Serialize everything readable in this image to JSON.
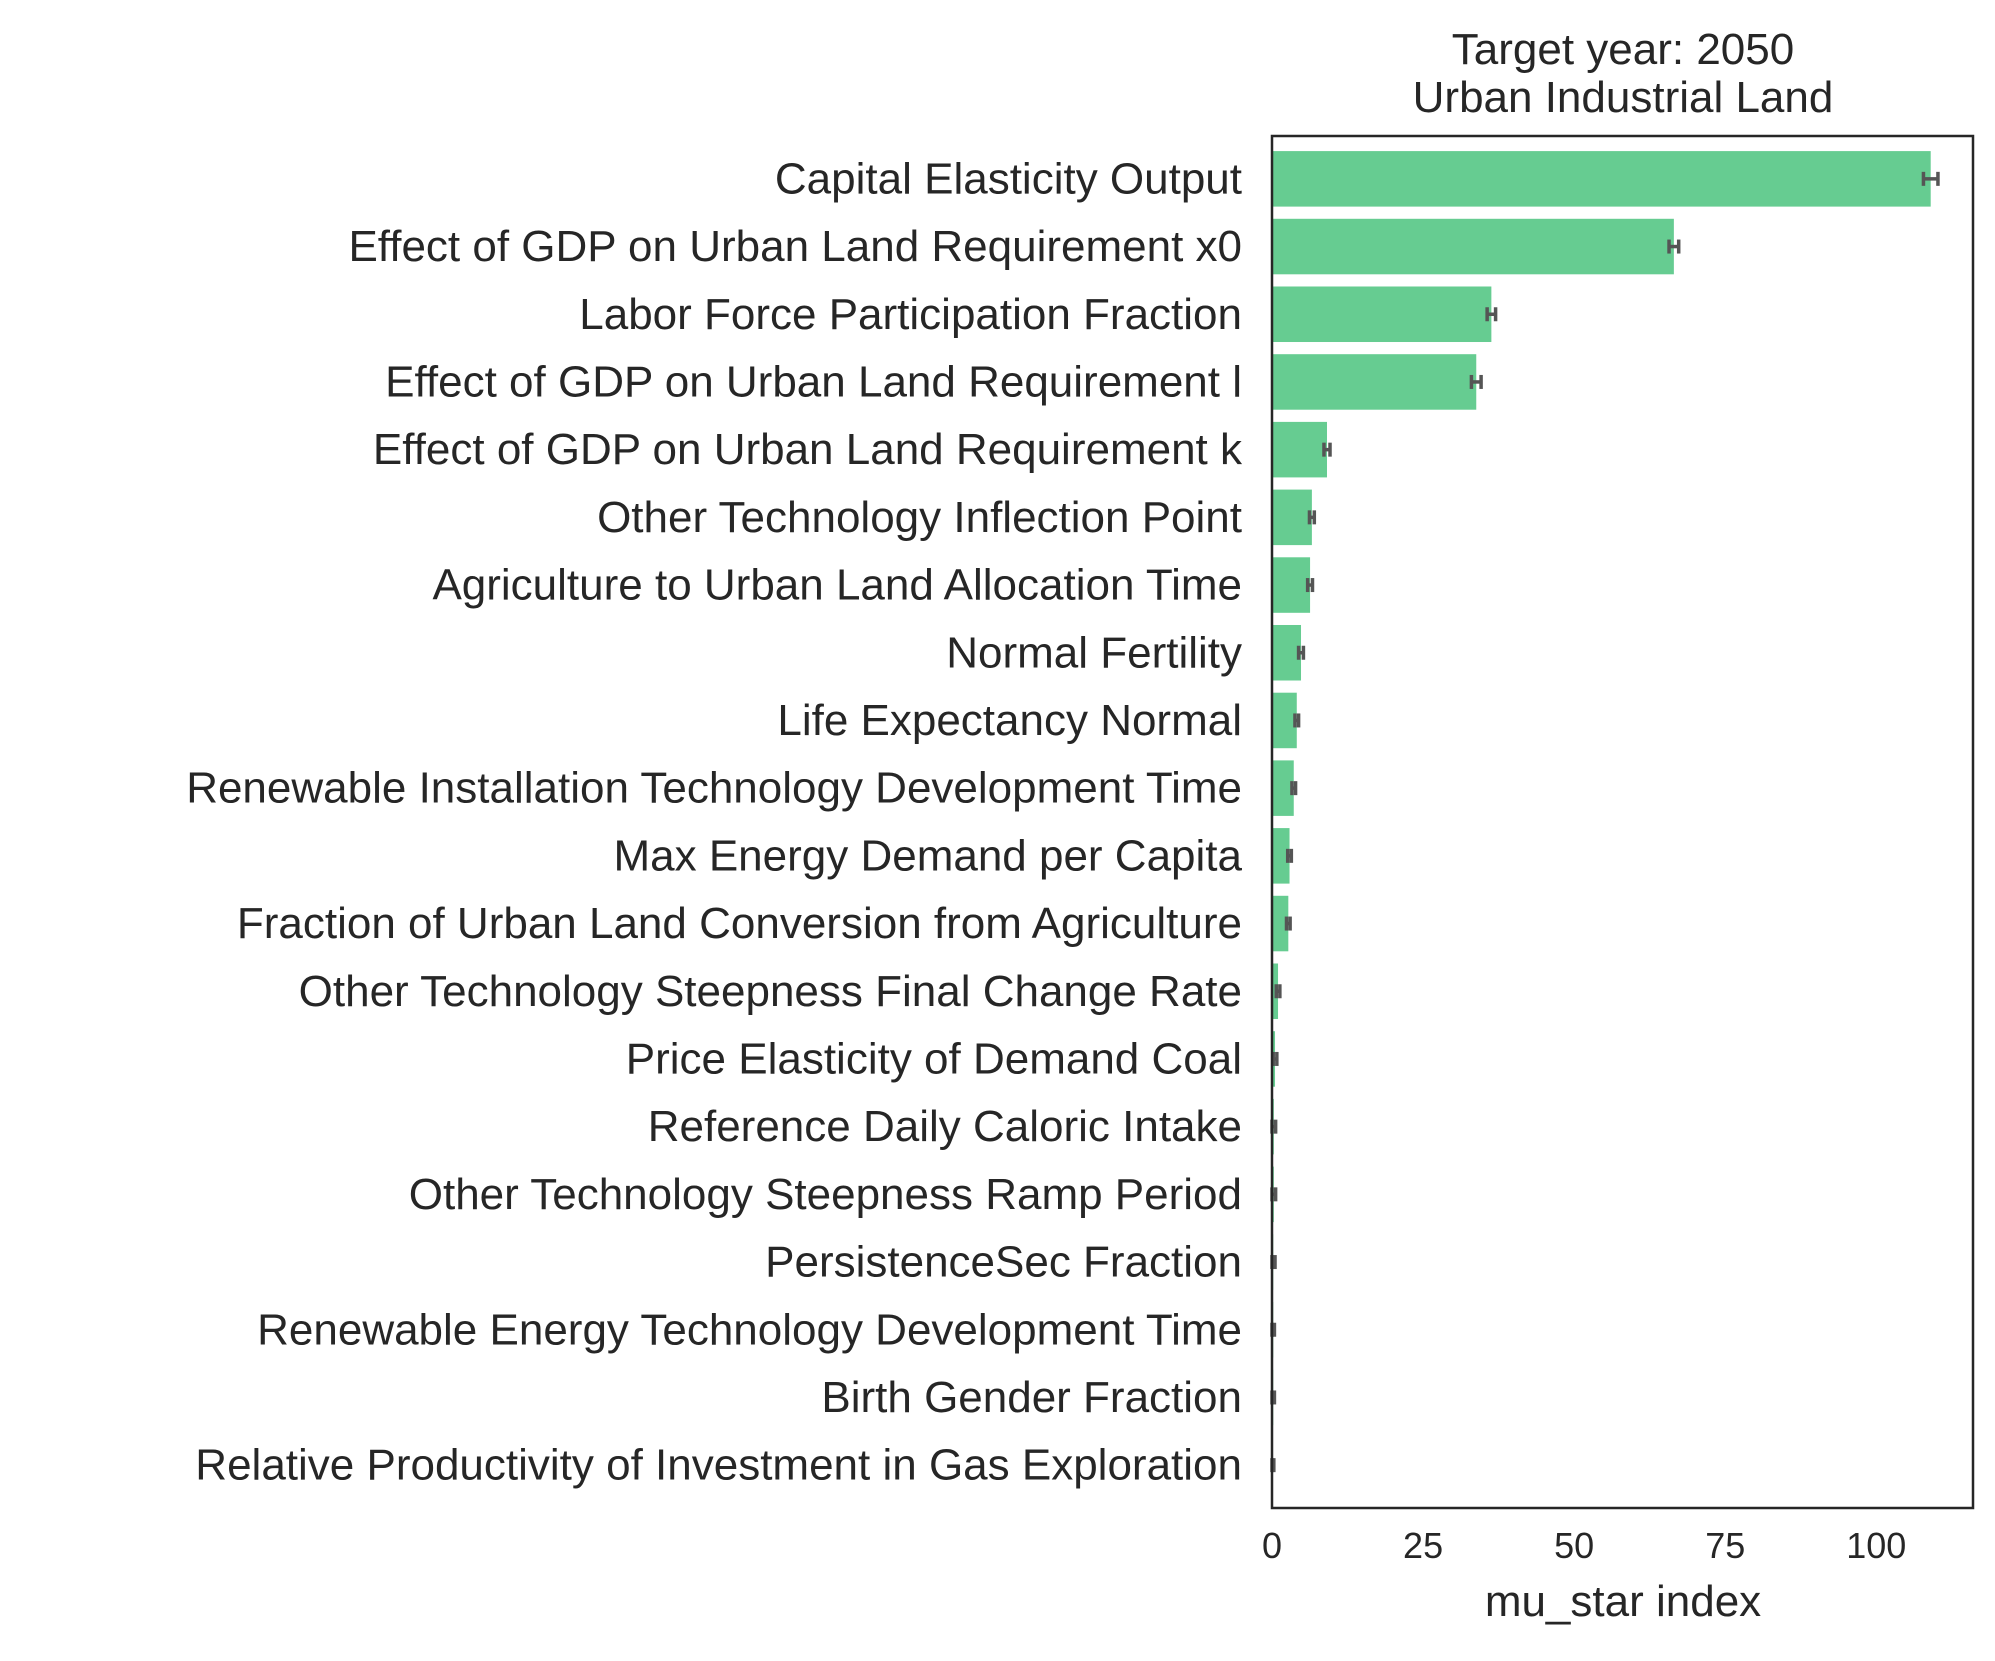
{
  "chart_data": {
    "type": "bar",
    "orientation": "horizontal",
    "title_lines": [
      "Target year: 2050",
      "Urban Industrial Land"
    ],
    "xlabel": "mu_star index",
    "ylabel": "",
    "xlim": [
      0,
      116
    ],
    "xticks": [
      0,
      25,
      50,
      75,
      100
    ],
    "grid": false,
    "legend": "none",
    "bar_color": "#66cc91",
    "error_color": "#555555",
    "categories": [
      "Capital Elasticity Output",
      "Effect of GDP on Urban Land Requirement x0",
      "Labor Force Participation Fraction",
      "Effect of GDP on Urban Land Requirement l",
      "Effect of GDP on Urban Land Requirement k",
      "Other Technology Inflection Point",
      "Agriculture to Urban Land Allocation Time",
      "Normal Fertility",
      "Life Expectancy Normal",
      "Renewable Installation Technology Development Time",
      "Max Energy Demand per Capita",
      "Fraction of Urban Land Conversion from Agriculture",
      "Other Technology Steepness Final Change Rate",
      "Price Elasticity of Demand Coal",
      "Reference Daily Caloric Intake",
      "Other Technology Steepness Ramp Period",
      "PersistenceSec Fraction",
      "Renewable Energy Technology Development Time",
      "Birth Gender Fraction",
      "Relative Productivity of Investment in Gas Exploration"
    ],
    "values": [
      109.0,
      66.5,
      36.3,
      33.8,
      9.1,
      6.6,
      6.3,
      4.8,
      4.1,
      3.6,
      2.9,
      2.7,
      1.0,
      0.5,
      0.3,
      0.3,
      0.2,
      0.2,
      0.2,
      0.1
    ],
    "errors": [
      1.2,
      0.8,
      0.7,
      0.8,
      0.5,
      0.4,
      0.4,
      0.4,
      0.3,
      0.3,
      0.3,
      0.3,
      0.3,
      0.3,
      0.3,
      0.3,
      0.3,
      0.2,
      0.2,
      0.2
    ]
  }
}
